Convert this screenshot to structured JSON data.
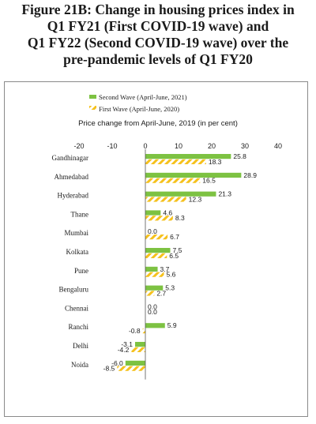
{
  "figure": {
    "title_lines": [
      "Figure 21B: Change in housing prices index in",
      "Q1 FY21 (First COVID-19 wave) and",
      "Q1 FY22 (Second COVID-19 wave) over the",
      "pre-pandemic levels of Q1 FY20"
    ]
  },
  "colors": {
    "second_wave": "#7dc242",
    "first_wave": "#f5c11d",
    "axis": "#555555"
  },
  "chart_data": {
    "type": "bar",
    "orientation": "horizontal",
    "title": "Figure 21B: Change in housing prices index in Q1 FY21 (First COVID-19 wave) and Q1 FY22 (Second COVID-19 wave) over the pre-pandemic levels of Q1 FY20",
    "xlabel": "Price change from April-June, 2019 (in per cent)",
    "ylabel": "",
    "xlim": [
      -20,
      40
    ],
    "xticks": [
      -20,
      -10,
      0,
      10,
      20,
      30,
      40
    ],
    "axis_position": "top",
    "legend_position": "top",
    "grid": false,
    "categories": [
      "Gandhinagar",
      "Ahmedabad",
      "Hyderabad",
      "Thane",
      "Mumbai",
      "Kolkata",
      "Pune",
      "Bengaluru",
      "Chennai",
      "Ranchi",
      "Delhi",
      "Noida"
    ],
    "series": [
      {
        "name": "Second Wave (April-June, 2021)",
        "pattern": "solid",
        "values": [
          25.8,
          28.9,
          21.3,
          4.6,
          0.0,
          7.5,
          3.7,
          5.3,
          0.0,
          5.9,
          -3.1,
          -6.0
        ]
      },
      {
        "name": "First Wave (April-June, 2020)",
        "pattern": "hatched",
        "values": [
          18.3,
          16.5,
          12.3,
          8.3,
          6.7,
          6.5,
          5.6,
          2.7,
          0.0,
          -0.8,
          -4.2,
          -8.5
        ]
      }
    ]
  }
}
